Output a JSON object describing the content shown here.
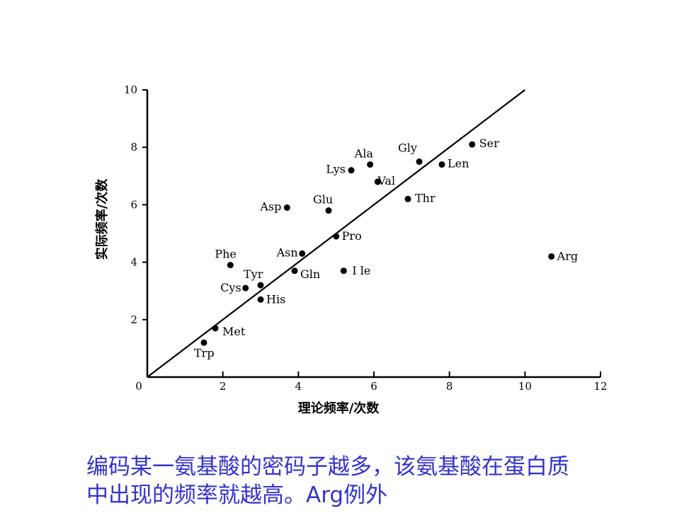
{
  "chart_data": {
    "type": "scatter",
    "title": "",
    "xlabel": "理论频率/次数",
    "ylabel": "实际频率/次数",
    "xlim": [
      0,
      12
    ],
    "ylim": [
      0,
      10
    ],
    "x_ticks": [
      "0",
      "2",
      "4",
      "6",
      "8",
      "10",
      "12"
    ],
    "y_ticks": [
      "2",
      "4",
      "6",
      "8",
      "10"
    ],
    "grid": false,
    "legend": "none",
    "point_color": "#000000",
    "points": [
      {
        "label": "Ser",
        "x": 8.6,
        "y": 8.1
      },
      {
        "label": "Ala",
        "x": 5.9,
        "y": 7.4
      },
      {
        "label": "Gly",
        "x": 7.2,
        "y": 7.5
      },
      {
        "label": "Lys",
        "x": 5.4,
        "y": 7.2
      },
      {
        "label": "Val",
        "x": 6.1,
        "y": 6.8
      },
      {
        "label": "Len",
        "x": 7.8,
        "y": 7.4
      },
      {
        "label": "Asp",
        "x": 3.7,
        "y": 5.9
      },
      {
        "label": "Glu",
        "x": 4.8,
        "y": 5.8
      },
      {
        "label": "Thr",
        "x": 6.9,
        "y": 6.2
      },
      {
        "label": "Pro",
        "x": 5.0,
        "y": 4.9
      },
      {
        "label": "Phe",
        "x": 2.2,
        "y": 3.9
      },
      {
        "label": "Asn",
        "x": 4.1,
        "y": 4.3
      },
      {
        "label": "Arg",
        "x": 10.7,
        "y": 4.2
      },
      {
        "label": "Tyr",
        "x": 3.0,
        "y": 3.2
      },
      {
        "label": "Gln",
        "x": 3.9,
        "y": 3.7
      },
      {
        "label": "I le",
        "x": 5.2,
        "y": 3.7
      },
      {
        "label": "Cys",
        "x": 2.6,
        "y": 3.1
      },
      {
        "label": "His",
        "x": 3.0,
        "y": 2.7
      },
      {
        "label": "Met",
        "x": 1.8,
        "y": 1.7
      },
      {
        "label": "Trp",
        "x": 1.5,
        "y": 1.2
      }
    ],
    "reference_line": {
      "x": [
        0,
        10
      ],
      "y": [
        0,
        10
      ]
    }
  },
  "caption": {
    "line1": "编码某一氨基酸的密码子越多，该氨基酸在蛋白质",
    "line2": "中出现的频率就越高。Arg例外"
  }
}
